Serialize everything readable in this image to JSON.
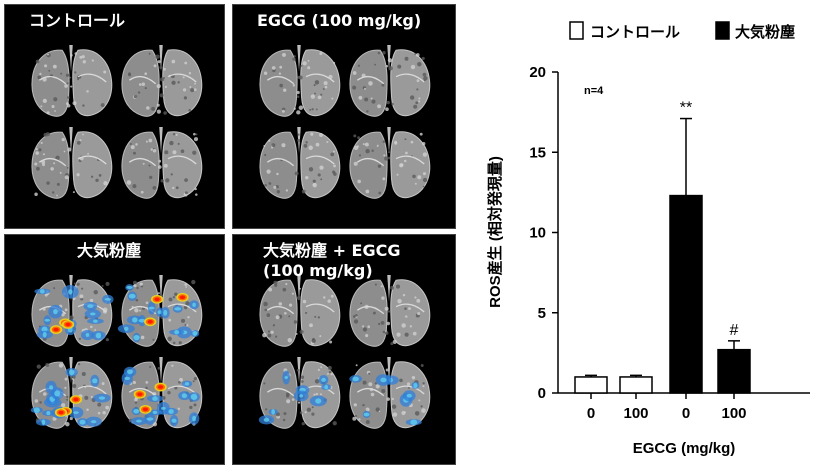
{
  "images": {
    "panels": [
      {
        "label": "コントロール",
        "heat": false
      },
      {
        "label": "EGCG (100 mg/kg)",
        "heat": false
      },
      {
        "label": "大気粉塵",
        "heat": true
      },
      {
        "label": "大気粉塵 + EGCG\n(100 mg/kg)",
        "heat": "light"
      }
    ]
  },
  "chart_data": {
    "type": "bar",
    "ylabel": "ROS産生 (相対発現量)",
    "xlabel": "EGCG (mg/kg)",
    "categories": [
      "0",
      "100",
      "0",
      "100"
    ],
    "values": [
      1.0,
      1.0,
      12.3,
      2.7
    ],
    "errors": [
      0.1,
      0.1,
      4.8,
      0.55
    ],
    "bar_groups": [
      "コントロール",
      "コントロール",
      "大気粉塵",
      "大気粉塵"
    ],
    "significance": [
      "",
      "",
      "**",
      "#"
    ],
    "ylim": [
      0,
      20
    ],
    "yticks": [
      "0",
      "5",
      "10",
      "15",
      "20"
    ],
    "annotation": "n=4",
    "legend": [
      {
        "name": "コントロール",
        "color": "#ffffff"
      },
      {
        "name": "大気粉塵",
        "color": "#000000"
      }
    ],
    "legend_position": "top"
  }
}
